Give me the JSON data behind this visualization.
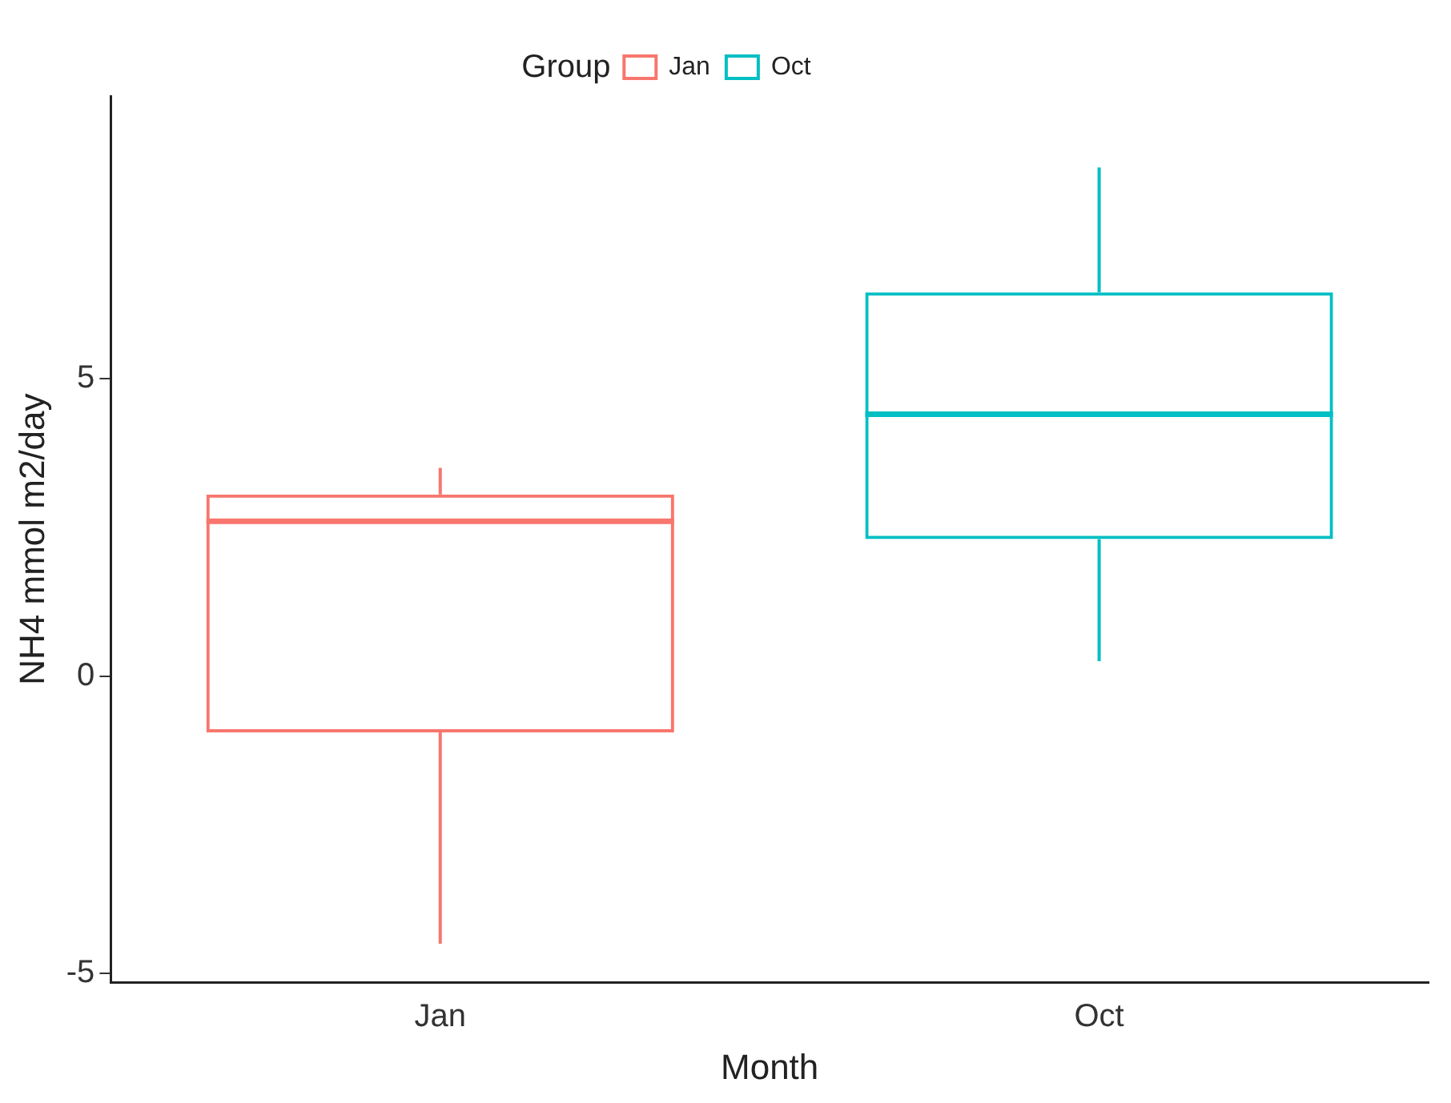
{
  "chart_data": {
    "type": "box",
    "xlabel": "Month",
    "ylabel": "NH4 mmol m2/day",
    "legend_title": "Group",
    "legend": "top",
    "categories": [
      "Jan",
      "Oct"
    ],
    "series": [
      {
        "name": "Jan",
        "color": "#f8766d",
        "boxes": [
          {
            "low": -4.5,
            "q1": -0.95,
            "median": 2.6,
            "q3": 3.05,
            "high": 3.5
          },
          null
        ]
      },
      {
        "name": "Oct",
        "color": "#00bfc4",
        "boxes": [
          null,
          {
            "low": 0.25,
            "q1": 2.3,
            "median": 4.4,
            "q3": 6.45,
            "high": 8.55
          }
        ]
      }
    ],
    "ylim": [
      -5.15,
      9.75
    ],
    "yticks": [
      -5,
      0,
      5
    ],
    "grid": false
  }
}
